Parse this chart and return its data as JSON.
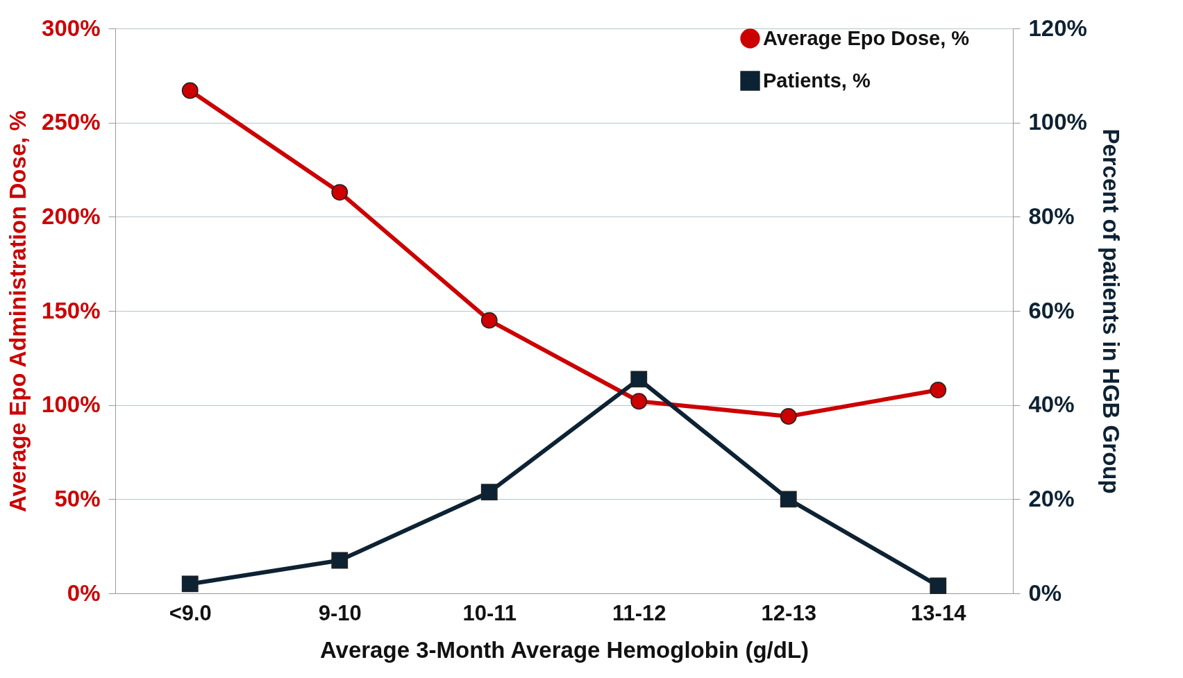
{
  "chart_data": {
    "type": "line",
    "xlabel": "Average 3-Month Average Hemoglobin (g/dL)",
    "ylabel": "Average Epo Administration Dose, %",
    "y2label": "Percent of patients in HGB Group",
    "categories": [
      "<9.0",
      "9-10",
      "10-11",
      "11-12",
      "12-13",
      "13-14"
    ],
    "series": [
      {
        "name": "Average Epo Dose, %",
        "color": "#cc0000",
        "marker": "circle",
        "values": [
          267,
          213,
          145,
          102,
          94,
          108
        ]
      },
      {
        "name": "Patients, %",
        "color": "#0d2233",
        "marker": "square",
        "axis": "y2",
        "values": [
          2,
          7,
          21.5,
          45.5,
          20,
          1.6
        ]
      }
    ],
    "ylim": [
      0,
      300
    ],
    "yticks": [
      {
        "value": 0,
        "label": "0%"
      },
      {
        "value": 50,
        "label": "50%"
      },
      {
        "value": 100,
        "label": "100%"
      },
      {
        "value": 150,
        "label": "150%"
      },
      {
        "value": 200,
        "label": "200%"
      },
      {
        "value": 250,
        "label": "250%"
      },
      {
        "value": 300,
        "label": "300%"
      }
    ],
    "y2lim": [
      0,
      120
    ],
    "y2ticks": [
      {
        "value": 0,
        "label": "0%"
      },
      {
        "value": 20,
        "label": "20%"
      },
      {
        "value": 40,
        "label": "40%"
      },
      {
        "value": 60,
        "label": "60%"
      },
      {
        "value": 80,
        "label": "80%"
      },
      {
        "value": 100,
        "label": "100%"
      },
      {
        "value": 120,
        "label": "120%"
      }
    ],
    "grid": "y",
    "legend": "top right",
    "line_style": "solid"
  }
}
